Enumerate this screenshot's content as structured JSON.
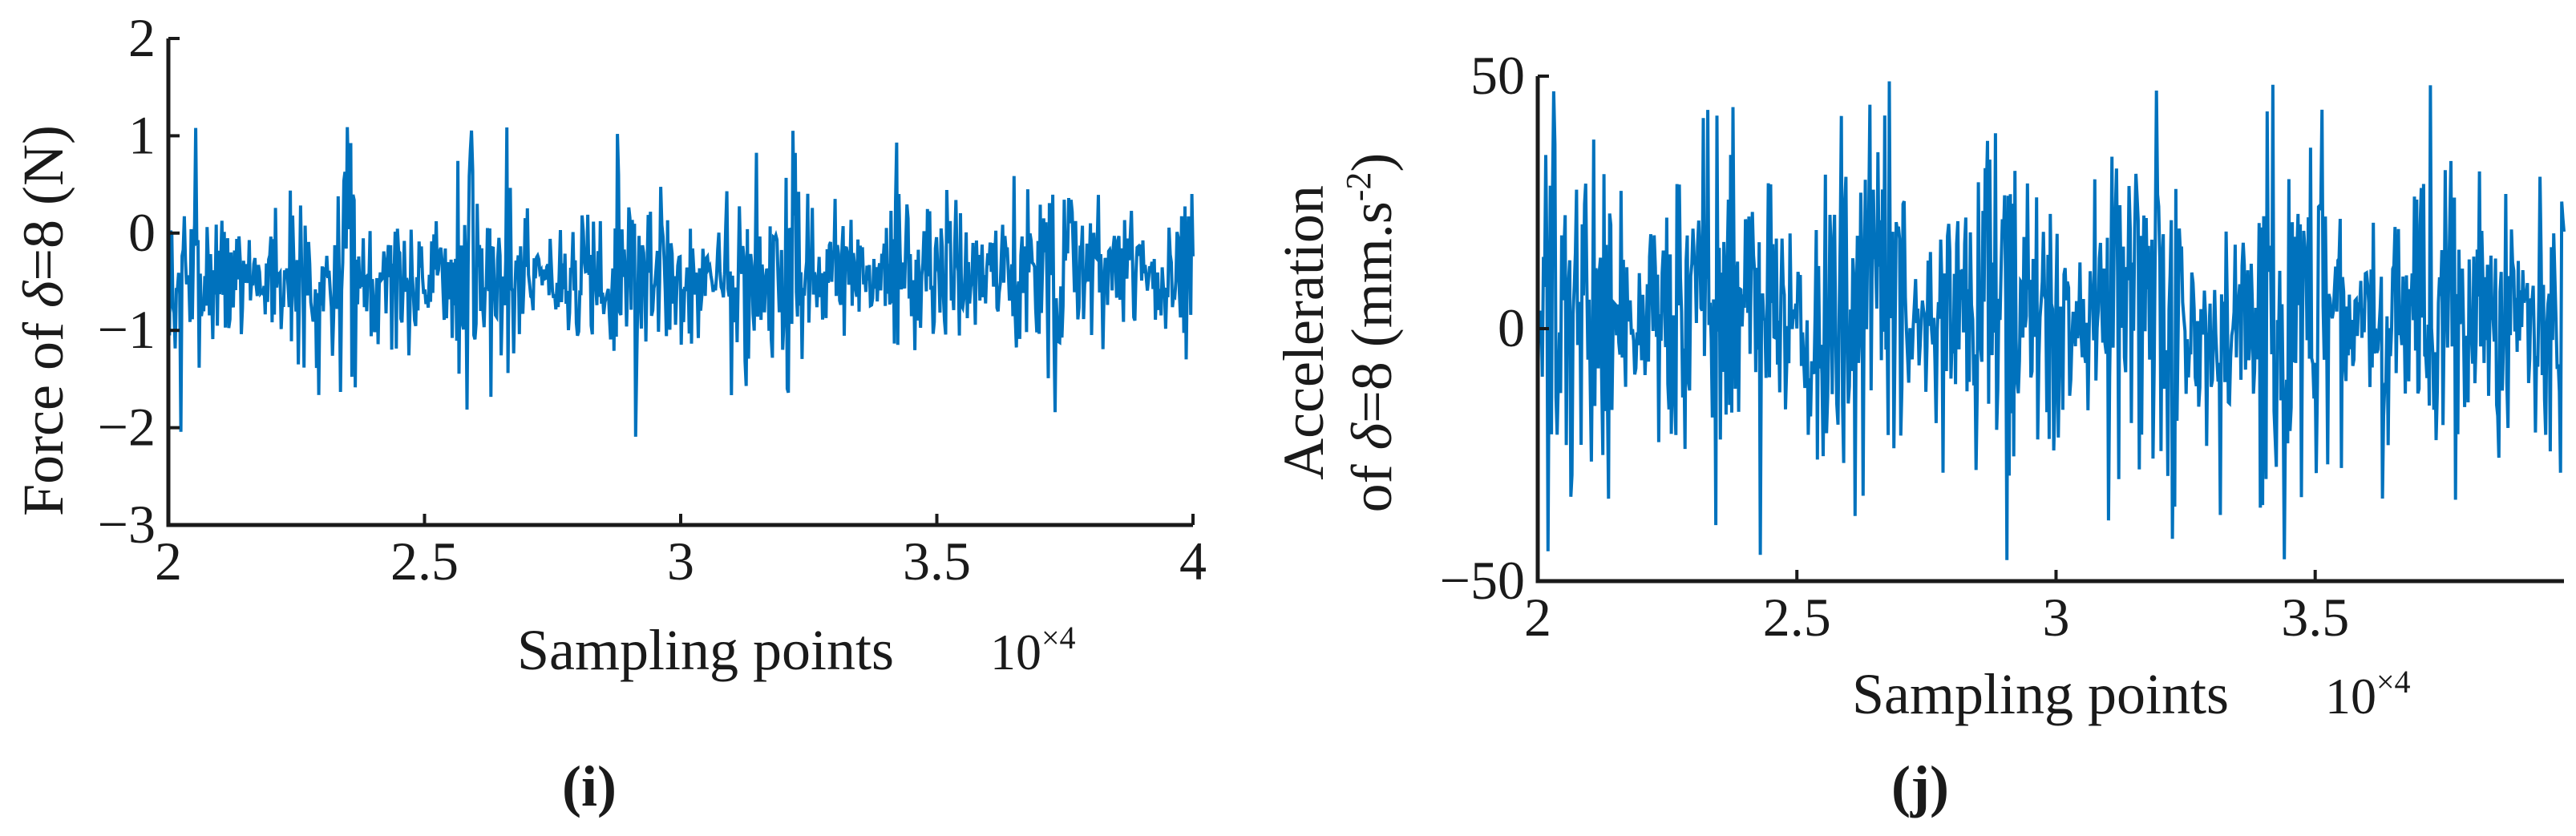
{
  "chart_data": [
    {
      "type": "line",
      "panel": "(i)",
      "xlabel": "Sampling points",
      "ylabel_parts": [
        "Force of ",
        "δ",
        "=8 (N)"
      ],
      "x_multiplier": "10",
      "x_multiplier_exp": "×4",
      "xlim": [
        20000,
        40000
      ],
      "ylim": [
        -3,
        2
      ],
      "x_ticks": [
        20000,
        25000,
        30000,
        35000,
        40000
      ],
      "x_tick_labels": [
        "2",
        "2.5",
        "3",
        "3.5",
        "4"
      ],
      "y_ticks": [
        -3,
        -2,
        -1,
        0,
        1,
        2
      ],
      "y_tick_labels": [
        "−3",
        "−2",
        "−1",
        "0",
        "1",
        "2"
      ],
      "signal": {
        "n_points": 900,
        "mean": -0.45,
        "amplitude": 0.42,
        "max": 1.1,
        "min": -2.1,
        "seed": 7
      },
      "series_color": "#0072BD"
    },
    {
      "type": "line",
      "panel": "(j)",
      "xlabel": "Sampling points",
      "ylabel_line1": "Acceleration",
      "ylabel_line2_parts": [
        "of ",
        "δ",
        "=8 (mm.s",
        "-2",
        ")"
      ],
      "x_multiplier": "10",
      "x_multiplier_exp": "×4",
      "xlim": [
        20000,
        40000
      ],
      "ylim": [
        -50,
        50
      ],
      "x_ticks": [
        20000,
        25000,
        30000,
        35000
      ],
      "x_tick_labels": [
        "2",
        "2.5",
        "3",
        "3.5"
      ],
      "y_ticks": [
        -50,
        0,
        50
      ],
      "y_tick_labels": [
        "−50",
        "0",
        "50"
      ],
      "signal": {
        "n_points": 900,
        "mean": 2,
        "amplitude": 15,
        "max": 50,
        "min": -46,
        "seed": 13
      },
      "series_color": "#0072BD"
    }
  ]
}
